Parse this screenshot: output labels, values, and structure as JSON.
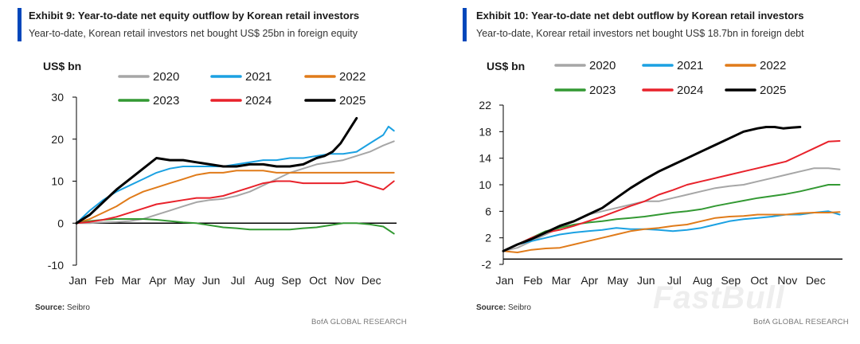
{
  "chart_data": [
    {
      "type": "line",
      "exhibit": "Exhibit 9: Year-to-date net equity outflow by Korean retail investors",
      "title": "Year-to-date, Korean retail investors net bought US$ 25bn in foreign equity",
      "ylabel": "US$ bn",
      "xlabel": "",
      "ylim": [
        -10,
        30
      ],
      "yticks": [
        30,
        20,
        10,
        0,
        -10
      ],
      "x_categories": [
        "Jan",
        "Feb",
        "Mar",
        "Apr",
        "May",
        "Jun",
        "Jul",
        "Aug",
        "Sep",
        "Oct",
        "Nov",
        "Dec"
      ],
      "legend": [
        "2020",
        "2021",
        "2022",
        "2023",
        "2024",
        "2025"
      ],
      "series": [
        {
          "name": "2020",
          "color": "#a6a6a6",
          "x": [
            0,
            0.5,
            1,
            1.5,
            2,
            2.5,
            3,
            3.5,
            4,
            4.5,
            5,
            5.5,
            6,
            6.5,
            7,
            7.5,
            8,
            8.5,
            9,
            9.5,
            10,
            10.5,
            11,
            11.5,
            11.9
          ],
          "values": [
            0,
            0,
            0.2,
            0.3,
            0.5,
            1,
            2,
            3,
            4,
            5,
            5.5,
            5.8,
            6.5,
            7.5,
            9,
            10.5,
            12,
            13,
            14,
            14.5,
            15,
            16,
            17,
            18.5,
            19.5
          ]
        },
        {
          "name": "2021",
          "color": "#1ba1e2",
          "x": [
            0,
            0.5,
            1,
            1.5,
            2,
            2.5,
            3,
            3.5,
            4,
            4.5,
            5,
            5.5,
            6,
            6.5,
            7,
            7.5,
            8,
            8.5,
            9,
            9.5,
            10,
            10.5,
            11,
            11.5,
            11.7,
            11.9
          ],
          "values": [
            0,
            3,
            5.5,
            7.5,
            9,
            10.5,
            12,
            13,
            13.5,
            13.5,
            13.5,
            13.5,
            14,
            14.5,
            15,
            15,
            15.5,
            15.5,
            16,
            16.5,
            16.5,
            17,
            19,
            21,
            23,
            22
          ]
        },
        {
          "name": "2022",
          "color": "#e07b1a",
          "x": [
            0,
            0.5,
            1,
            1.5,
            2,
            2.5,
            3,
            3.5,
            4,
            4.5,
            5,
            5.5,
            6,
            6.5,
            7,
            7.5,
            8,
            8.5,
            9,
            9.5,
            10,
            10.5,
            11,
            11.5,
            11.9
          ],
          "values": [
            0,
            1,
            2.5,
            4,
            6,
            7.5,
            8.5,
            9.5,
            10.5,
            11.5,
            12,
            12,
            12.5,
            12.5,
            12.5,
            12,
            12,
            12,
            12,
            12,
            12,
            12,
            12,
            12,
            12
          ]
        },
        {
          "name": "2023",
          "color": "#339933",
          "x": [
            0,
            0.5,
            1,
            1.5,
            2,
            2.5,
            3,
            3.5,
            4,
            4.5,
            5,
            5.5,
            6,
            6.5,
            7,
            7.5,
            8,
            8.5,
            9,
            9.5,
            10,
            10.5,
            11,
            11.5,
            11.9
          ],
          "values": [
            0,
            0.5,
            0.8,
            1,
            1,
            1,
            0.8,
            0.5,
            0.2,
            0,
            -0.5,
            -1,
            -1.2,
            -1.5,
            -1.5,
            -1.5,
            -1.5,
            -1.2,
            -1,
            -0.5,
            0,
            0,
            -0.3,
            -0.8,
            -2.5
          ]
        },
        {
          "name": "2024",
          "color": "#e8222b",
          "x": [
            0,
            0.5,
            1,
            1.5,
            2,
            2.5,
            3,
            3.5,
            4,
            4.5,
            5,
            5.5,
            6,
            6.5,
            7,
            7.5,
            8,
            8.5,
            9,
            9.5,
            10,
            10.5,
            11,
            11.5,
            11.9
          ],
          "values": [
            0,
            0.3,
            0.8,
            1.5,
            2.5,
            3.5,
            4.5,
            5,
            5.5,
            6,
            6,
            6.5,
            7.5,
            8.5,
            9.5,
            10,
            10,
            9.5,
            9.5,
            9.5,
            9.5,
            10,
            9,
            8,
            10
          ]
        },
        {
          "name": "2025",
          "color": "#000000",
          "x": [
            0,
            0.5,
            1,
            1.5,
            2,
            2.5,
            3,
            3.5,
            4,
            4.5,
            5,
            5.5,
            6,
            6.5,
            7,
            7.5,
            8,
            8.5,
            9,
            9.3,
            9.6,
            9.9,
            10.1,
            10.3,
            10.5
          ],
          "values": [
            0,
            2,
            5,
            8,
            10.5,
            13,
            15.5,
            15,
            15,
            14.5,
            14,
            13.5,
            13.5,
            14,
            14,
            13.5,
            13.5,
            14,
            15.5,
            16,
            17,
            19,
            21,
            23,
            25
          ]
        }
      ]
    },
    {
      "type": "line",
      "exhibit": "Exhibit 10: Year-to-date net debt outflow by Korean retail investors",
      "title": "Year-to-date, Korear retail investors net bought US$ 18.7bn in foreign debt",
      "ylabel": "US$ bn",
      "xlabel": "",
      "ylim": [
        -2,
        22
      ],
      "yticks": [
        22,
        18,
        14,
        10,
        6,
        2,
        -2
      ],
      "x_categories": [
        "Jan",
        "Feb",
        "Mar",
        "Apr",
        "May",
        "Jun",
        "Jul",
        "Aug",
        "Sep",
        "Oct",
        "Nov",
        "Dec"
      ],
      "legend": [
        "2020",
        "2021",
        "2022",
        "2023",
        "2024",
        "2025"
      ],
      "series": [
        {
          "name": "2020",
          "color": "#a6a6a6",
          "x": [
            0,
            0.5,
            1,
            1.5,
            2,
            2.5,
            3,
            3.5,
            4,
            4.5,
            5,
            5.5,
            6,
            6.5,
            7,
            7.5,
            8,
            8.5,
            9,
            9.5,
            10,
            10.5,
            11,
            11.5,
            11.9
          ],
          "values": [
            0,
            0.5,
            1.5,
            2.5,
            3.5,
            4.5,
            5.5,
            6,
            6.5,
            7,
            7.5,
            7.5,
            8,
            8.5,
            9,
            9.5,
            9.8,
            10,
            10.5,
            11,
            11.5,
            12,
            12.5,
            12.5,
            12.3
          ]
        },
        {
          "name": "2021",
          "color": "#1ba1e2",
          "x": [
            0,
            0.5,
            1,
            1.5,
            2,
            2.5,
            3,
            3.5,
            4,
            4.5,
            5,
            5.5,
            6,
            6.5,
            7,
            7.5,
            8,
            8.5,
            9,
            9.5,
            10,
            10.5,
            11,
            11.5,
            11.9
          ],
          "values": [
            0,
            1,
            1.5,
            2,
            2.5,
            2.8,
            3,
            3.2,
            3.5,
            3.3,
            3.3,
            3.2,
            3,
            3.2,
            3.5,
            4,
            4.5,
            4.8,
            5,
            5.2,
            5.5,
            5.5,
            5.8,
            6,
            5.5
          ]
        },
        {
          "name": "2022",
          "color": "#e07b1a",
          "x": [
            0,
            0.5,
            1,
            1.5,
            2,
            2.5,
            3,
            3.5,
            4,
            4.5,
            5,
            5.5,
            6,
            6.5,
            7,
            7.5,
            8,
            8.5,
            9,
            9.5,
            10,
            10.5,
            11,
            11.5,
            11.9
          ],
          "values": [
            0,
            -0.2,
            0.2,
            0.4,
            0.5,
            1,
            1.5,
            2,
            2.5,
            3,
            3.3,
            3.5,
            3.8,
            4,
            4.5,
            5,
            5.2,
            5.3,
            5.5,
            5.5,
            5.5,
            5.7,
            5.8,
            5.8,
            5.9
          ]
        },
        {
          "name": "2023",
          "color": "#339933",
          "x": [
            0,
            0.5,
            1,
            1.5,
            2,
            2.5,
            3,
            3.5,
            4,
            4.5,
            5,
            5.5,
            6,
            6.5,
            7,
            7.5,
            8,
            8.5,
            9,
            9.5,
            10,
            10.5,
            11,
            11.5,
            11.9
          ],
          "values": [
            0,
            1,
            2,
            3,
            3.5,
            4,
            4.3,
            4.5,
            4.8,
            5,
            5.2,
            5.5,
            5.8,
            6,
            6.3,
            6.8,
            7.2,
            7.6,
            8,
            8.3,
            8.6,
            9,
            9.5,
            10,
            10
          ]
        },
        {
          "name": "2024",
          "color": "#e8222b",
          "x": [
            0,
            0.5,
            1,
            1.5,
            2,
            2.5,
            3,
            3.5,
            4,
            4.5,
            5,
            5.5,
            6,
            6.5,
            7,
            7.5,
            8,
            8.5,
            9,
            9.5,
            10,
            10.5,
            11,
            11.5,
            11.9
          ],
          "values": [
            0,
            1,
            2,
            2.8,
            3.2,
            3.8,
            4.5,
            5.2,
            6,
            6.8,
            7.5,
            8.5,
            9.2,
            10,
            10.5,
            11,
            11.5,
            12,
            12.5,
            13,
            13.5,
            14.5,
            15.5,
            16.5,
            16.6
          ]
        },
        {
          "name": "2025",
          "color": "#000000",
          "x": [
            0,
            0.5,
            1,
            1.5,
            2,
            2.5,
            3,
            3.5,
            4,
            4.5,
            5,
            5.5,
            6,
            6.5,
            7,
            7.5,
            8,
            8.5,
            9,
            9.3,
            9.6,
            9.9,
            10.2,
            10.5
          ],
          "values": [
            0,
            1,
            1.8,
            2.8,
            3.8,
            4.5,
            5.5,
            6.5,
            8,
            9.5,
            10.8,
            12,
            13,
            14,
            15,
            16,
            17,
            18,
            18.5,
            18.7,
            18.7,
            18.5,
            18.6,
            18.7
          ]
        }
      ]
    }
  ],
  "panels": [
    {
      "exhibit": "Exhibit 9: Year-to-date net equity outflow by Korean retail investors",
      "subtitle": "Year-to-date, Korean retail investors net bought US$ 25bn in foreign equity",
      "source_label": "Source:",
      "source_value": "Seibro",
      "footer": "BofA GLOBAL RESEARCH"
    },
    {
      "exhibit": "Exhibit 10: Year-to-date net debt outflow by Korean retail investors",
      "subtitle": "Year-to-date, Korear retail investors net bought US$ 18.7bn in foreign debt",
      "source_label": "Source:",
      "source_value": "Seibro",
      "footer": "BofA GLOBAL RESEARCH"
    }
  ],
  "watermark": "FastBull"
}
